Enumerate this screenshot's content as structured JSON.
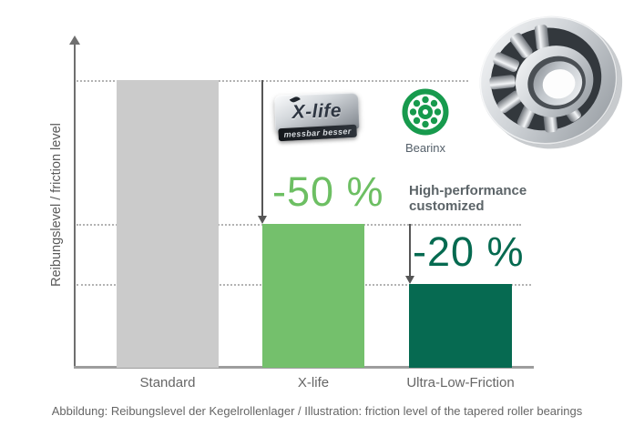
{
  "chart_data": {
    "type": "bar",
    "title": "",
    "categories": [
      "Standard",
      "X-life",
      "Ultra-Low-Friction"
    ],
    "values": [
      100,
      50,
      29
    ],
    "values_note": "relative friction level, percent of Standard (read from bar pixel heights; no numeric axis shown)",
    "bar_colors": [
      "#cbcbcb",
      "#74c06c",
      "#066a51"
    ],
    "xlabel": "",
    "ylabel": "Reibungslevel / friction level",
    "ylim": [
      0,
      115
    ],
    "axis_ticks": "none",
    "grid": "horizontal dotted reference line at each bar top",
    "legend": "none",
    "annotations": [
      {
        "text": "-50 %",
        "color": "#6dbf63",
        "from": "Standard",
        "to": "X-life"
      },
      {
        "text": "-20 %",
        "color": "#056a50",
        "from": "X-life",
        "to": "Ultra-Low-Friction"
      },
      {
        "text": "High-performance customized",
        "color": "#5c6468",
        "near": "Ultra-Low-Friction"
      }
    ]
  },
  "ylabel": "Reibungslevel / friction level",
  "annotations": {
    "minus50": "-50 %",
    "minus20": "-20 %",
    "hp_line1": "High-performance",
    "hp_line2": "customized"
  },
  "categories": {
    "c0": "Standard",
    "c1": "X-life",
    "c2": "Ultra-Low-Friction"
  },
  "logos": {
    "xlife": {
      "title": "X-life",
      "subtitle": "messbar besser"
    },
    "bearinx": {
      "label": "Bearinx",
      "color": "#179a4d"
    }
  },
  "icons": {
    "bearing_photo": "tapered-roller-bearing",
    "bearinx_mark": "bearing-rollers-circle"
  },
  "caption": "Abbildung: Reibungslevel der Kegelrollenlager / Illustration: friction level of the tapered roller bearings",
  "colors": {
    "axis": "#6f6f6f",
    "x_axis": "#9d9d9d",
    "gridline": "#b3b3b3",
    "arrow": "#565656",
    "minus50_text": "#6dbf63",
    "minus20_text": "#056a50",
    "label_text": "#666666",
    "background": "#ffffff"
  }
}
